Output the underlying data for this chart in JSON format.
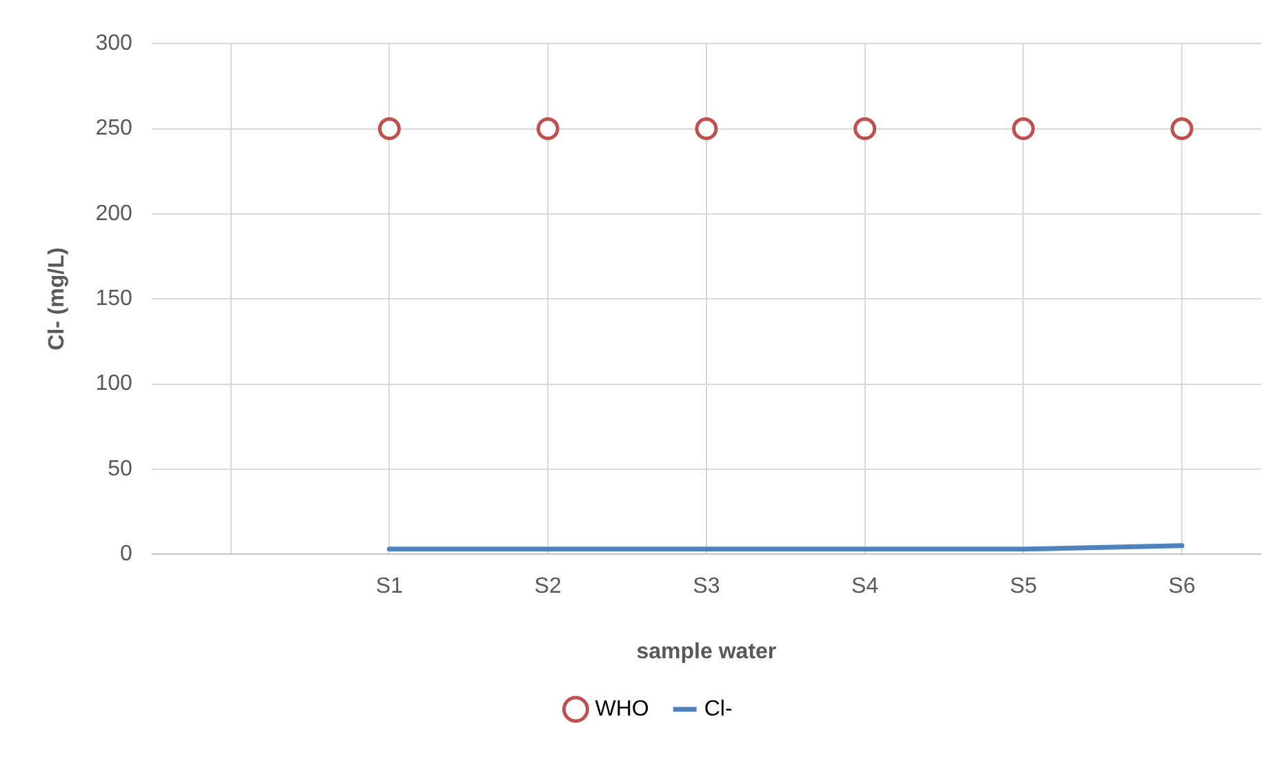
{
  "chart_data": {
    "type": "line",
    "xlabel": "sample water",
    "ylabel": "Cl- (mg/L)",
    "categories": [
      null,
      "S1",
      "S2",
      "S3",
      "S4",
      "S5",
      "S6"
    ],
    "series": [
      {
        "name": "WHO",
        "type": "scatter",
        "color": "#c0504d",
        "marker": "circle",
        "values": [
          null,
          250,
          250,
          250,
          250,
          250,
          250
        ]
      },
      {
        "name": "Cl-",
        "color": "#4f81bd",
        "marker": "none",
        "values": [
          null,
          3,
          3,
          3,
          3,
          3,
          5
        ]
      }
    ],
    "ylim": [
      0,
      300
    ],
    "yticks": [
      0,
      50,
      100,
      150,
      200,
      250,
      300
    ],
    "grid": true,
    "legend": "bottom"
  }
}
